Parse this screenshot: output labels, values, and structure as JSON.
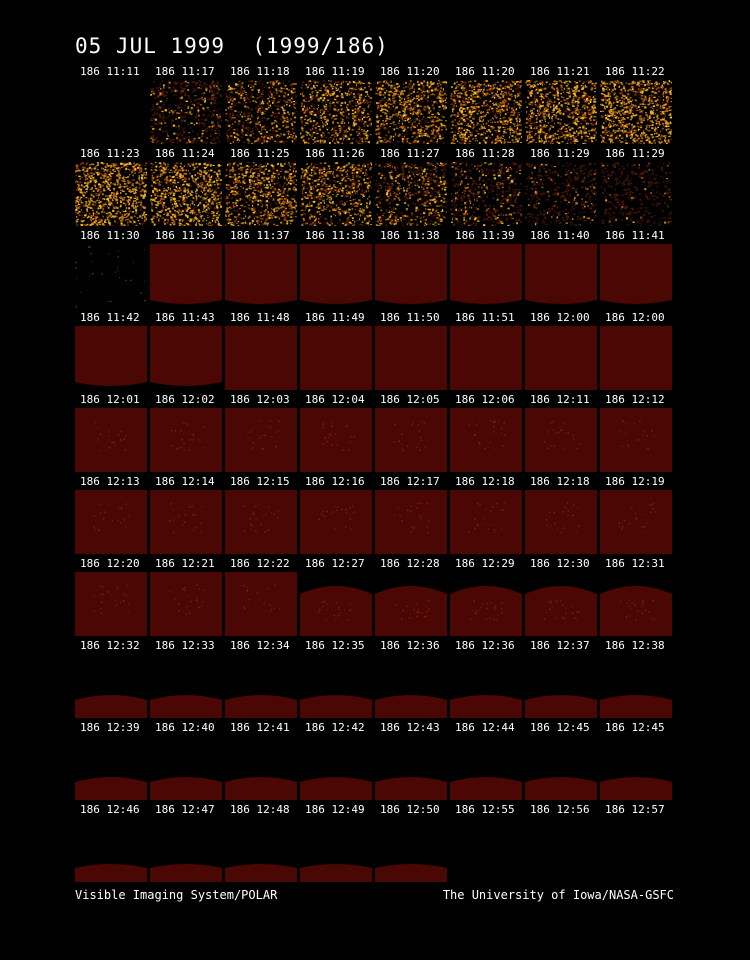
{
  "header": {
    "title": "05 JUL 1999  (1999/186)"
  },
  "colors": {
    "background": "#000000",
    "text": "#ffffff",
    "disk_fill": "#4a0703",
    "speckle_bright": "#ffc020",
    "speckle_mid": "#c86010"
  },
  "thumbnails": {
    "rows": [
      [
        {
          "label": "186 11:11",
          "kind": "blank"
        },
        {
          "label": "186 11:17",
          "kind": "noise",
          "intensity": 0.35
        },
        {
          "label": "186 11:18",
          "kind": "noise",
          "intensity": 0.55
        },
        {
          "label": "186 11:19",
          "kind": "noise",
          "intensity": 0.7
        },
        {
          "label": "186 11:20",
          "kind": "noise",
          "intensity": 0.8
        },
        {
          "label": "186 11:20",
          "kind": "noise",
          "intensity": 0.85
        },
        {
          "label": "186 11:21",
          "kind": "noise",
          "intensity": 0.9
        },
        {
          "label": "186 11:22",
          "kind": "noise",
          "intensity": 0.95
        }
      ],
      [
        {
          "label": "186 11:23",
          "kind": "noise",
          "intensity": 0.95
        },
        {
          "label": "186 11:24",
          "kind": "noise",
          "intensity": 0.9
        },
        {
          "label": "186 11:25",
          "kind": "noise",
          "intensity": 0.8
        },
        {
          "label": "186 11:26",
          "kind": "noise",
          "intensity": 0.7
        },
        {
          "label": "186 11:27",
          "kind": "noise",
          "intensity": 0.55
        },
        {
          "label": "186 11:28",
          "kind": "noise",
          "intensity": 0.35
        },
        {
          "label": "186 11:29",
          "kind": "noise",
          "intensity": 0.2
        },
        {
          "label": "186 11:29",
          "kind": "noise",
          "intensity": 0.1
        }
      ],
      [
        {
          "label": "186 11:30",
          "kind": "sparse"
        },
        {
          "label": "186 11:36",
          "kind": "disk",
          "shape": "frame-bottom-curve"
        },
        {
          "label": "186 11:37",
          "kind": "disk",
          "shape": "frame-bottom-curve"
        },
        {
          "label": "186 11:38",
          "kind": "disk",
          "shape": "frame-bottom-curve"
        },
        {
          "label": "186 11:38",
          "kind": "disk",
          "shape": "frame-bottom-curve"
        },
        {
          "label": "186 11:39",
          "kind": "disk",
          "shape": "frame-bottom-curve"
        },
        {
          "label": "186 11:40",
          "kind": "disk",
          "shape": "frame-bottom-curve"
        },
        {
          "label": "186 11:41",
          "kind": "disk",
          "shape": "frame-bottom-curve"
        }
      ],
      [
        {
          "label": "186 11:42",
          "kind": "disk",
          "shape": "frame-bottom-curve"
        },
        {
          "label": "186 11:43",
          "kind": "disk",
          "shape": "frame-bottom-curve"
        },
        {
          "label": "186 11:48",
          "kind": "disk",
          "shape": "frame"
        },
        {
          "label": "186 11:49",
          "kind": "disk",
          "shape": "frame"
        },
        {
          "label": "186 11:50",
          "kind": "disk",
          "shape": "frame"
        },
        {
          "label": "186 11:51",
          "kind": "disk",
          "shape": "frame"
        },
        {
          "label": "186 12:00",
          "kind": "disk",
          "shape": "frame"
        },
        {
          "label": "186 12:00",
          "kind": "disk",
          "shape": "frame"
        }
      ],
      [
        {
          "label": "186 12:01",
          "kind": "disk",
          "shape": "frame",
          "aurora": true
        },
        {
          "label": "186 12:02",
          "kind": "disk",
          "shape": "frame",
          "aurora": true
        },
        {
          "label": "186 12:03",
          "kind": "disk",
          "shape": "frame",
          "aurora": true
        },
        {
          "label": "186 12:04",
          "kind": "disk",
          "shape": "frame",
          "aurora": true
        },
        {
          "label": "186 12:05",
          "kind": "disk",
          "shape": "frame",
          "aurora": true
        },
        {
          "label": "186 12:06",
          "kind": "disk",
          "shape": "frame",
          "aurora": true
        },
        {
          "label": "186 12:11",
          "kind": "disk",
          "shape": "frame",
          "aurora": true
        },
        {
          "label": "186 12:12",
          "kind": "disk",
          "shape": "frame",
          "aurora": true
        }
      ],
      [
        {
          "label": "186 12:13",
          "kind": "disk",
          "shape": "frame",
          "aurora": true
        },
        {
          "label": "186 12:14",
          "kind": "disk",
          "shape": "frame",
          "aurora": true
        },
        {
          "label": "186 12:15",
          "kind": "disk",
          "shape": "frame",
          "aurora": true
        },
        {
          "label": "186 12:16",
          "kind": "disk",
          "shape": "frame",
          "aurora": true
        },
        {
          "label": "186 12:17",
          "kind": "disk",
          "shape": "frame",
          "aurora": true
        },
        {
          "label": "186 12:18",
          "kind": "disk",
          "shape": "frame",
          "aurora": true
        },
        {
          "label": "186 12:18",
          "kind": "disk",
          "shape": "frame",
          "aurora": true
        },
        {
          "label": "186 12:19",
          "kind": "disk",
          "shape": "frame",
          "aurora": true
        }
      ],
      [
        {
          "label": "186 12:20",
          "kind": "disk",
          "shape": "frame",
          "aurora": true
        },
        {
          "label": "186 12:21",
          "kind": "disk",
          "shape": "frame",
          "aurora": true
        },
        {
          "label": "186 12:22",
          "kind": "disk",
          "shape": "frame",
          "aurora": true
        },
        {
          "label": "186 12:27",
          "kind": "disk",
          "shape": "cap-tall",
          "aurora": true
        },
        {
          "label": "186 12:28",
          "kind": "disk",
          "shape": "cap-tall",
          "aurora": true
        },
        {
          "label": "186 12:29",
          "kind": "disk",
          "shape": "cap-tall",
          "aurora": true
        },
        {
          "label": "186 12:30",
          "kind": "disk",
          "shape": "cap-tall",
          "aurora": true
        },
        {
          "label": "186 12:31",
          "kind": "disk",
          "shape": "cap-tall",
          "aurora": true
        }
      ],
      [
        {
          "label": "186 12:32",
          "kind": "disk",
          "shape": "cap"
        },
        {
          "label": "186 12:33",
          "kind": "disk",
          "shape": "cap"
        },
        {
          "label": "186 12:34",
          "kind": "disk",
          "shape": "cap"
        },
        {
          "label": "186 12:35",
          "kind": "disk",
          "shape": "cap"
        },
        {
          "label": "186 12:36",
          "kind": "disk",
          "shape": "cap"
        },
        {
          "label": "186 12:36",
          "kind": "disk",
          "shape": "cap"
        },
        {
          "label": "186 12:37",
          "kind": "disk",
          "shape": "cap"
        },
        {
          "label": "186 12:38",
          "kind": "disk",
          "shape": "cap"
        }
      ],
      [
        {
          "label": "186 12:39",
          "kind": "disk",
          "shape": "cap"
        },
        {
          "label": "186 12:40",
          "kind": "disk",
          "shape": "cap"
        },
        {
          "label": "186 12:41",
          "kind": "disk",
          "shape": "cap"
        },
        {
          "label": "186 12:42",
          "kind": "disk",
          "shape": "cap"
        },
        {
          "label": "186 12:43",
          "kind": "disk",
          "shape": "cap"
        },
        {
          "label": "186 12:44",
          "kind": "disk",
          "shape": "cap"
        },
        {
          "label": "186 12:45",
          "kind": "disk",
          "shape": "cap"
        },
        {
          "label": "186 12:45",
          "kind": "disk",
          "shape": "cap"
        }
      ],
      [
        {
          "label": "186 12:46",
          "kind": "disk",
          "shape": "cap-small"
        },
        {
          "label": "186 12:47",
          "kind": "disk",
          "shape": "cap-small"
        },
        {
          "label": "186 12:48",
          "kind": "disk",
          "shape": "cap-small"
        },
        {
          "label": "186 12:49",
          "kind": "disk",
          "shape": "cap-small"
        },
        {
          "label": "186 12:50",
          "kind": "disk",
          "shape": "cap-small"
        },
        {
          "label": "186 12:55",
          "kind": "blank"
        },
        {
          "label": "186 12:56",
          "kind": "blank"
        },
        {
          "label": "186 12:57",
          "kind": "blank"
        }
      ]
    ]
  },
  "footer": {
    "left": "Visible Imaging System/POLAR",
    "right": "The University of Iowa/NASA-GSFC"
  }
}
